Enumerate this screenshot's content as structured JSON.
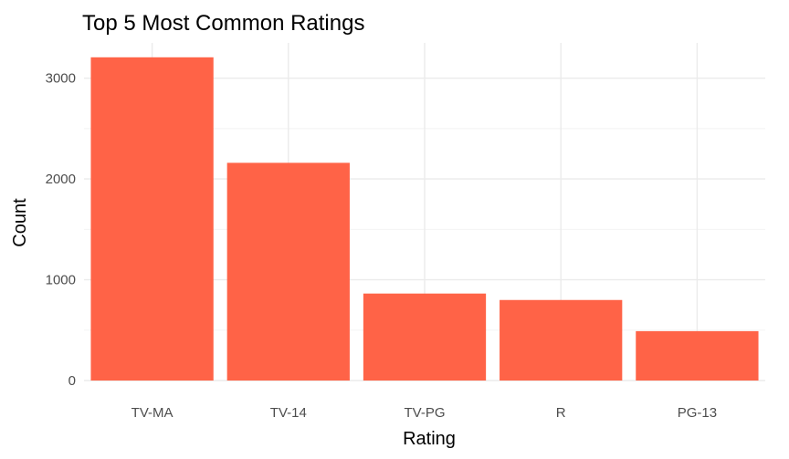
{
  "chart_data": {
    "type": "bar",
    "title": "Top 5 Most Common Ratings",
    "xlabel": "Rating",
    "ylabel": "Count",
    "categories": [
      "TV-MA",
      "TV-14",
      "TV-PG",
      "R",
      "PG-13"
    ],
    "values": [
      3207,
      2160,
      863,
      799,
      490
    ],
    "ylim": [
      0,
      3350
    ],
    "yticks": [
      0,
      1000,
      2000,
      3000
    ],
    "ytick_labels": [
      "0",
      "1000",
      "2000",
      "3000"
    ],
    "grid": true,
    "legend": "none",
    "colors": {
      "bar": "#FF6347",
      "grid": "#EBEBEB",
      "tick_text": "#4D4D4D"
    }
  }
}
